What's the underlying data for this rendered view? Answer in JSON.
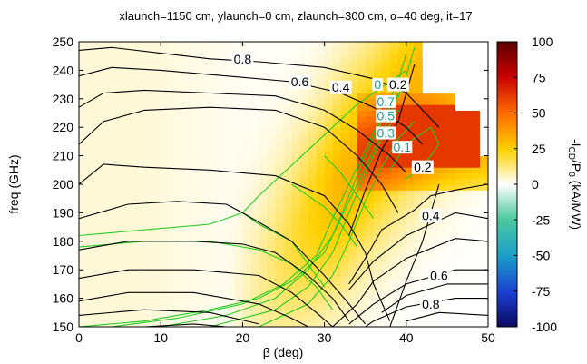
{
  "chart_data": {
    "type": "heatmap",
    "title": "xlaunch=1150 cm, ylaunch=0 cm, zlaunch=300 cm, α=40 deg, it=17",
    "xlabel": "β (deg)",
    "ylabel": "freq (GHz)",
    "colorbar_label": "-I_CD/P_0 (kA/MW)",
    "xlim": [
      0,
      50
    ],
    "ylim": [
      150,
      250
    ],
    "x_ticks": [
      "0",
      "10",
      "20",
      "30",
      "40",
      "50"
    ],
    "y_ticks": [
      "150",
      "160",
      "170",
      "180",
      "190",
      "200",
      "210",
      "220",
      "230",
      "240",
      "250"
    ],
    "colorbar_ticks": [
      "100",
      "75",
      "50",
      "25",
      "0",
      "-25",
      "-50",
      "-75",
      "-100"
    ],
    "colorbar_range": [
      -100,
      100
    ],
    "colors": {
      "black_contours": "#000000",
      "green_contours": "#22cc22",
      "teal_labels": "#1a9a9a",
      "no_data": "#ffffff"
    },
    "black_contour_labels": [
      {
        "text": "0.8",
        "freq": 244,
        "beta": 20
      },
      {
        "text": "0.6",
        "freq": 236,
        "beta": 27
      },
      {
        "text": "0.4",
        "freq": 234,
        "beta": 32
      },
      {
        "text": "0.2",
        "freq": 235,
        "beta": 39
      },
      {
        "text": "0.2",
        "freq": 206,
        "beta": 42
      },
      {
        "text": "0.4",
        "freq": 189,
        "beta": 43
      },
      {
        "text": "0.6",
        "freq": 168,
        "beta": 44
      },
      {
        "text": "0.8",
        "freq": 158,
        "beta": 43
      }
    ],
    "green_contour_labels": [
      {
        "text": "0",
        "freq": 235,
        "beta": 36.5
      },
      {
        "text": "0.7",
        "freq": 229,
        "beta": 37.5
      },
      {
        "text": "0.5",
        "freq": 224,
        "beta": 37.5
      },
      {
        "text": "0.3",
        "freq": 218,
        "beta": 37.5
      },
      {
        "text": "0.1",
        "freq": 213,
        "beta": 39.5
      }
    ]
  }
}
